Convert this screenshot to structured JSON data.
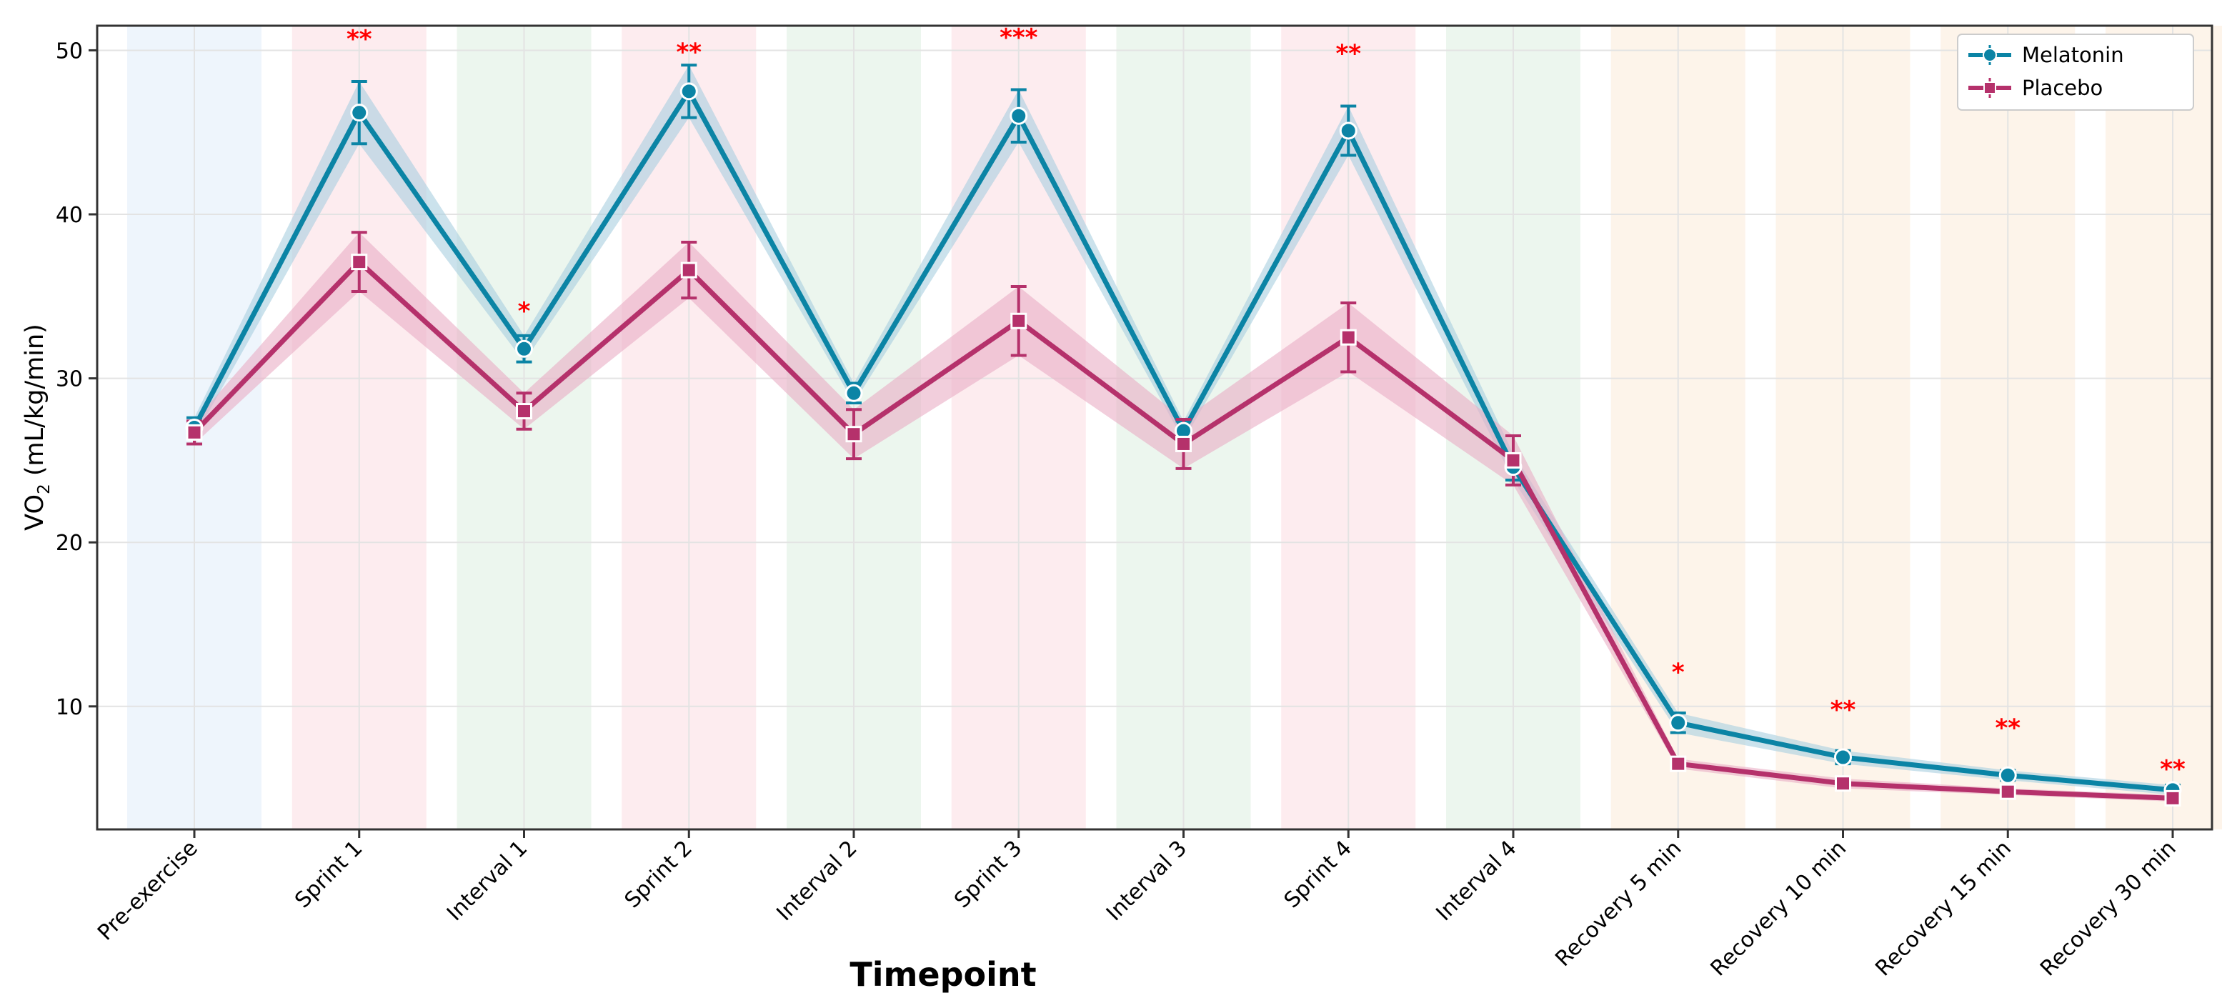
{
  "chart_data": {
    "type": "line",
    "title": "",
    "xlabel": "Timepoint",
    "ylabel": "VO2 (mL/kg/min)",
    "ylabel_main": "VO",
    "ylabel_sub": "2",
    "ylabel_rest": " (mL/kg/min)",
    "ylim": [
      2.5,
      51.5
    ],
    "yticks": [
      10,
      20,
      30,
      40,
      50
    ],
    "ytick_labels": [
      "10",
      "20",
      "30",
      "40",
      "50"
    ],
    "grid": true,
    "legend_position": "top-right",
    "categories": [
      "Pre-exercise",
      "Sprint 1",
      "Interval 1",
      "Sprint 2",
      "Interval 2",
      "Sprint 3",
      "Interval 3",
      "Sprint 4",
      "Interval 4",
      "Recovery 5 min",
      "Recovery 10 min",
      "Recovery 15 min",
      "Recovery 30 min"
    ],
    "phase_colors": [
      "#eef5fc",
      "#fdecef",
      "#ecf6ee",
      "#fdecef",
      "#ecf6ee",
      "#fdecef",
      "#ecf6ee",
      "#fdecef",
      "#ecf6ee",
      "#fdf4ea",
      "#fdf4ea",
      "#fdf4ea",
      "#fdf4ea"
    ],
    "series": [
      {
        "name": "Melatonin",
        "color": "#0b84a5",
        "band_color": "#a9cfe0",
        "marker": "circle",
        "values": [
          27.0,
          46.2,
          31.8,
          47.5,
          29.1,
          46.0,
          26.8,
          45.1,
          24.6,
          9.0,
          6.9,
          5.8,
          4.9
        ],
        "errors": [
          0.6,
          1.9,
          0.8,
          1.6,
          0.6,
          1.6,
          0.6,
          1.5,
          0.8,
          0.6,
          0.4,
          0.3,
          0.3
        ]
      },
      {
        "name": "Placebo",
        "color": "#b5316b",
        "band_color": "#eaaec4",
        "marker": "square",
        "values": [
          26.7,
          37.1,
          28.0,
          36.6,
          26.6,
          33.5,
          26.0,
          32.5,
          25.0,
          6.5,
          5.3,
          4.8,
          4.4
        ],
        "errors": [
          0.7,
          1.8,
          1.1,
          1.7,
          1.5,
          2.1,
          1.5,
          2.1,
          1.5,
          0.3,
          0.3,
          0.2,
          0.2
        ]
      }
    ],
    "significance": [
      {
        "index": 1,
        "label": "**",
        "y": 50.8
      },
      {
        "index": 2,
        "label": "*",
        "y": 34.2
      },
      {
        "index": 3,
        "label": "**",
        "y": 50.0
      },
      {
        "index": 5,
        "label": "***",
        "y": 50.9
      },
      {
        "index": 7,
        "label": "**",
        "y": 49.9
      },
      {
        "index": 9,
        "label": "*",
        "y": 12.2
      },
      {
        "index": 10,
        "label": "**",
        "y": 9.9
      },
      {
        "index": 11,
        "label": "**",
        "y": 8.8
      },
      {
        "index": 12,
        "label": "**",
        "y": 6.3
      }
    ],
    "significance_color": "#ff0000"
  }
}
